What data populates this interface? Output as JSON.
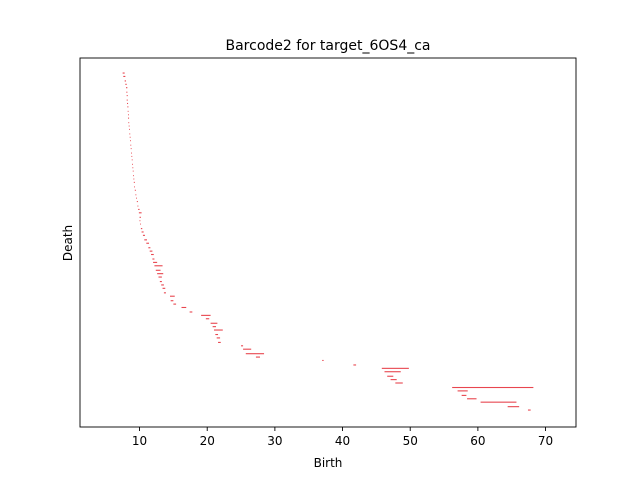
{
  "chart_data": {
    "type": "barcode",
    "title": "Barcode2 for target_6OS4_ca",
    "xlabel": "Birth",
    "ylabel": "Death",
    "xlim": [
      1.2,
      74.5
    ],
    "xticks": [
      10,
      20,
      30,
      40,
      50,
      60,
      70
    ],
    "bar_color": "#e8464f",
    "n_bars": 300,
    "bars": [
      [
        7.5,
        7.8
      ],
      [
        7.6,
        7.9
      ],
      [
        7.8,
        8.0
      ],
      [
        7.9,
        8.1
      ],
      [
        8.0,
        8.2
      ],
      [
        8.05,
        8.2
      ],
      [
        8.1,
        8.25
      ],
      [
        8.1,
        8.25
      ],
      [
        8.15,
        8.3
      ],
      [
        8.2,
        8.35
      ],
      [
        8.25,
        8.35
      ],
      [
        8.3,
        8.4
      ],
      [
        8.3,
        8.45
      ],
      [
        8.35,
        8.45
      ],
      [
        8.4,
        8.5
      ],
      [
        8.45,
        8.55
      ],
      [
        8.5,
        8.6
      ],
      [
        8.55,
        8.65
      ],
      [
        8.6,
        8.7
      ],
      [
        8.65,
        8.75
      ],
      [
        8.7,
        8.8
      ],
      [
        8.75,
        8.85
      ],
      [
        8.8,
        8.9
      ],
      [
        8.85,
        8.95
      ],
      [
        8.9,
        9.0
      ],
      [
        8.95,
        9.05
      ],
      [
        9.0,
        9.1
      ],
      [
        9.05,
        9.15
      ],
      [
        9.1,
        9.2
      ],
      [
        9.15,
        9.3
      ],
      [
        9.2,
        9.3
      ],
      [
        9.3,
        9.45
      ],
      [
        9.4,
        9.5
      ],
      [
        9.5,
        9.6
      ],
      [
        9.6,
        9.75
      ],
      [
        9.7,
        9.8
      ],
      [
        9.8,
        10.0
      ],
      [
        9.9,
        10.3
      ],
      [
        10.0,
        10.2
      ],
      [
        10.0,
        10.1
      ],
      [
        10.1,
        10.2
      ],
      [
        10.2,
        10.4
      ],
      [
        10.3,
        10.6
      ],
      [
        10.5,
        10.8
      ],
      [
        10.7,
        11.1
      ],
      [
        11.0,
        11.4
      ],
      [
        11.3,
        11.6
      ],
      [
        11.5,
        11.9
      ],
      [
        11.7,
        12.1
      ],
      [
        11.9,
        12.2
      ],
      [
        12.0,
        12.6
      ],
      [
        12.2,
        13.4
      ],
      [
        12.4,
        13.1
      ],
      [
        12.6,
        13.5
      ],
      [
        12.8,
        13.3
      ],
      [
        13.0,
        13.3
      ],
      [
        13.2,
        13.6
      ],
      [
        13.4,
        13.8
      ],
      [
        13.6,
        13.9
      ],
      [
        14.5,
        15.2
      ],
      [
        14.6,
        15.0
      ],
      [
        15.0,
        15.4
      ],
      [
        16.2,
        16.9
      ],
      [
        17.4,
        17.8
      ],
      [
        19.1,
        20.5
      ],
      [
        19.8,
        20.3
      ],
      [
        20.5,
        21.5
      ],
      [
        20.8,
        21.3
      ],
      [
        21.0,
        22.3
      ],
      [
        21.2,
        21.6
      ],
      [
        21.4,
        21.9
      ],
      [
        21.6,
        22.0
      ],
      [
        25.0,
        25.3
      ],
      [
        25.3,
        26.5
      ],
      [
        25.7,
        28.4
      ],
      [
        27.2,
        27.8
      ],
      [
        37.0,
        37.2
      ],
      [
        41.6,
        42.0
      ],
      [
        45.8,
        49.8
      ],
      [
        46.2,
        48.6
      ],
      [
        46.6,
        47.5
      ],
      [
        47.1,
        48.0
      ],
      [
        47.8,
        48.9
      ],
      [
        56.2,
        68.2
      ],
      [
        57.0,
        58.5
      ],
      [
        57.6,
        58.3
      ],
      [
        58.4,
        59.8
      ],
      [
        60.4,
        65.7
      ],
      [
        64.4,
        66.1
      ],
      [
        67.4,
        67.8
      ]
    ]
  }
}
